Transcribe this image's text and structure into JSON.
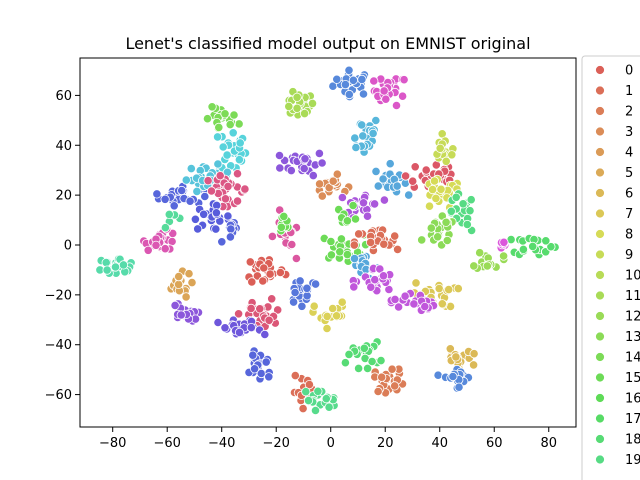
{
  "chart_data": {
    "type": "scatter",
    "title": "Lenet's classified model output on EMNIST original",
    "xlabel": "",
    "ylabel": "",
    "xlim": [
      -92,
      90
    ],
    "ylim": [
      -73,
      75
    ],
    "xticks": [
      -80,
      -60,
      -40,
      -20,
      0,
      20,
      40,
      60,
      80
    ],
    "yticks": [
      -60,
      -40,
      -20,
      0,
      20,
      40,
      60
    ],
    "grid": false,
    "legend_position": "right (cut off)",
    "legend": [
      {
        "label": "0",
        "color": "#db5f57"
      },
      {
        "label": "1",
        "color": "#db6e57"
      },
      {
        "label": "2",
        "color": "#db7d57"
      },
      {
        "label": "3",
        "color": "#db8c57"
      },
      {
        "label": "4",
        "color": "#db9b57"
      },
      {
        "label": "5",
        "color": "#dbaa57"
      },
      {
        "label": "6",
        "color": "#dbb957"
      },
      {
        "label": "7",
        "color": "#dbc857"
      },
      {
        "label": "8",
        "color": "#d6db57"
      },
      {
        "label": "9",
        "color": "#c7db57"
      },
      {
        "label": "10",
        "color": "#b8db57"
      },
      {
        "label": "11",
        "color": "#a9db57"
      },
      {
        "label": "12",
        "color": "#9adb57"
      },
      {
        "label": "13",
        "color": "#8bdb57"
      },
      {
        "label": "14",
        "color": "#7cdb57"
      },
      {
        "label": "15",
        "color": "#6ddb57"
      },
      {
        "label": "16",
        "color": "#5edb57"
      },
      {
        "label": "17",
        "color": "#57db66"
      },
      {
        "label": "18",
        "color": "#57db75"
      },
      {
        "label": "19",
        "color": "#57db84"
      }
    ],
    "clusters": [
      {
        "x": 8,
        "y": 65,
        "sx": 3.5,
        "sy": 2.5,
        "n": 28,
        "color": "#5789db"
      },
      {
        "x": 22,
        "y": 62,
        "sx": 3,
        "sy": 3,
        "n": 26,
        "color": "#db57c8"
      },
      {
        "x": -12,
        "y": 56,
        "sx": 3,
        "sy": 2.5,
        "n": 24,
        "color": "#a9db57"
      },
      {
        "x": -40,
        "y": 50,
        "sx": 3,
        "sy": 2.5,
        "n": 22,
        "color": "#7cdb57"
      },
      {
        "x": -36,
        "y": 38,
        "sx": 2.5,
        "sy": 5,
        "n": 26,
        "color": "#57d3db"
      },
      {
        "x": 12,
        "y": 44,
        "sx": 3,
        "sy": 4,
        "n": 22,
        "color": "#57b6db"
      },
      {
        "x": -10,
        "y": 33,
        "sx": 4,
        "sy": 2.5,
        "n": 30,
        "color": "#8c57db"
      },
      {
        "x": 0,
        "y": 24,
        "sx": 3,
        "sy": 2,
        "n": 18,
        "color": "#db8c57"
      },
      {
        "x": 22,
        "y": 26,
        "sx": 3,
        "sy": 3,
        "n": 22,
        "color": "#57a7db"
      },
      {
        "x": -55,
        "y": 20,
        "sx": 4,
        "sy": 2,
        "n": 28,
        "color": "#5766db"
      },
      {
        "x": -45,
        "y": 27,
        "sx": 4,
        "sy": 2.5,
        "n": 26,
        "color": "#57c4db"
      },
      {
        "x": -38,
        "y": 22,
        "sx": 4,
        "sy": 3,
        "n": 28,
        "color": "#db5784"
      },
      {
        "x": -44,
        "y": 11,
        "sx": 3.5,
        "sy": 2.5,
        "n": 22,
        "color": "#575cdb"
      },
      {
        "x": -36,
        "y": 5,
        "sx": 2,
        "sy": 2,
        "n": 10,
        "color": "#5766db"
      },
      {
        "x": 38,
        "y": 28,
        "sx": 5,
        "sy": 4,
        "n": 30,
        "color": "#db5766"
      },
      {
        "x": 42,
        "y": 38,
        "sx": 2.5,
        "sy": 3,
        "n": 14,
        "color": "#c7db57"
      },
      {
        "x": 40,
        "y": 20,
        "sx": 4,
        "sy": 3,
        "n": 26,
        "color": "#d6db57"
      },
      {
        "x": 48,
        "y": 12,
        "sx": 2.5,
        "sy": 4,
        "n": 20,
        "color": "#57db84"
      },
      {
        "x": 40,
        "y": 5,
        "sx": 3,
        "sy": 3,
        "n": 22,
        "color": "#8bdb57"
      },
      {
        "x": 12,
        "y": 16,
        "sx": 3.5,
        "sy": 3,
        "n": 24,
        "color": "#aa57db"
      },
      {
        "x": 6,
        "y": 12,
        "sx": 2,
        "sy": 2,
        "n": 8,
        "color": "#6ddb57"
      },
      {
        "x": -62,
        "y": 2,
        "sx": 3,
        "sy": 2,
        "n": 22,
        "color": "#db57b2"
      },
      {
        "x": -58,
        "y": 10,
        "sx": 2,
        "sy": 1.5,
        "n": 6,
        "color": "#57db9b"
      },
      {
        "x": -79,
        "y": -8,
        "sx": 4,
        "sy": 1.5,
        "n": 24,
        "color": "#57dbaa"
      },
      {
        "x": -17,
        "y": 3,
        "sx": 2,
        "sy": 5,
        "n": 18,
        "color": "#db57a0"
      },
      {
        "x": -17,
        "y": 8,
        "sx": 1.5,
        "sy": 2,
        "n": 8,
        "color": "#6ddb57"
      },
      {
        "x": 4,
        "y": -1,
        "sx": 4,
        "sy": 2.5,
        "n": 24,
        "color": "#6ddb57"
      },
      {
        "x": 17,
        "y": 1,
        "sx": 4,
        "sy": 3,
        "n": 26,
        "color": "#db6e57"
      },
      {
        "x": 12,
        "y": -8,
        "sx": 3,
        "sy": 3,
        "n": 18,
        "color": "#57a7db"
      },
      {
        "x": -24,
        "y": -10,
        "sx": 3.5,
        "sy": 3,
        "n": 28,
        "color": "#db5f57"
      },
      {
        "x": -10,
        "y": -18,
        "sx": 3,
        "sy": 3,
        "n": 22,
        "color": "#5777db"
      },
      {
        "x": 16,
        "y": -15,
        "sx": 3.5,
        "sy": 3,
        "n": 26,
        "color": "#c057db"
      },
      {
        "x": 58,
        "y": -6,
        "sx": 2.5,
        "sy": 2,
        "n": 16,
        "color": "#9adb57"
      },
      {
        "x": 75,
        "y": 0,
        "sx": 4,
        "sy": 2,
        "n": 22,
        "color": "#57db6d"
      },
      {
        "x": 62,
        "y": 0,
        "sx": 1.5,
        "sy": 1,
        "n": 6,
        "color": "#db57db"
      },
      {
        "x": -56,
        "y": -16,
        "sx": 2.5,
        "sy": 2.5,
        "n": 20,
        "color": "#dba557"
      },
      {
        "x": -54,
        "y": -28,
        "sx": 2.5,
        "sy": 2.5,
        "n": 18,
        "color": "#8c57db"
      },
      {
        "x": 38,
        "y": -20,
        "sx": 4,
        "sy": 2.5,
        "n": 22,
        "color": "#dbc857"
      },
      {
        "x": 30,
        "y": -23,
        "sx": 4,
        "sy": 2,
        "n": 24,
        "color": "#c057db"
      },
      {
        "x": 0,
        "y": -28,
        "sx": 3,
        "sy": 2.5,
        "n": 16,
        "color": "#dbd157"
      },
      {
        "x": -25,
        "y": -28,
        "sx": 4,
        "sy": 3,
        "n": 28,
        "color": "#db5777"
      },
      {
        "x": -33,
        "y": -34,
        "sx": 4,
        "sy": 2,
        "n": 24,
        "color": "#6e57db"
      },
      {
        "x": -26,
        "y": -48,
        "sx": 2.5,
        "sy": 3.5,
        "n": 24,
        "color": "#5766db"
      },
      {
        "x": 12,
        "y": -44,
        "sx": 3,
        "sy": 2.5,
        "n": 20,
        "color": "#57db75"
      },
      {
        "x": 22,
        "y": -54,
        "sx": 3,
        "sy": 2.5,
        "n": 22,
        "color": "#db7d57"
      },
      {
        "x": 46,
        "y": -46,
        "sx": 3,
        "sy": 2,
        "n": 20,
        "color": "#dbb957"
      },
      {
        "x": 46,
        "y": -53,
        "sx": 3,
        "sy": 2,
        "n": 18,
        "color": "#5789db"
      },
      {
        "x": -9,
        "y": -59,
        "sx": 2.5,
        "sy": 3,
        "n": 16,
        "color": "#db6e57"
      },
      {
        "x": -4,
        "y": -62,
        "sx": 3,
        "sy": 2,
        "n": 18,
        "color": "#57db8c"
      }
    ]
  }
}
